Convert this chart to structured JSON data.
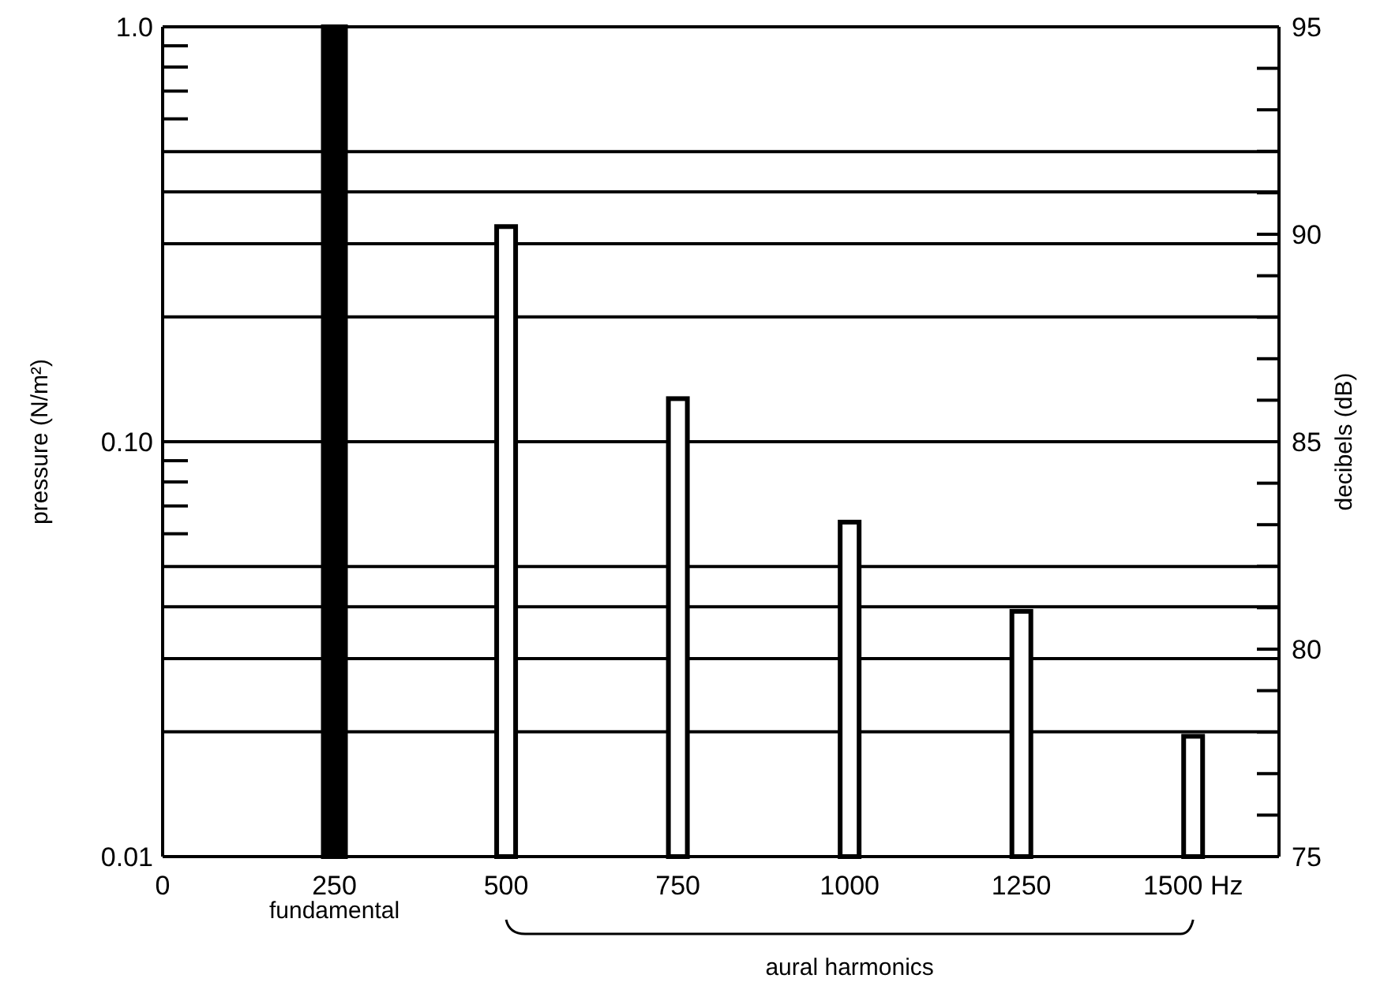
{
  "chart_data": {
    "type": "bar",
    "x": [
      250,
      500,
      750,
      1000,
      1250,
      1500
    ],
    "values": [
      1.0,
      0.33,
      0.127,
      0.064,
      0.039,
      0.0195
    ],
    "colors": [
      "#000000",
      "#ffffff",
      "#ffffff",
      "#ffffff",
      "#ffffff",
      "#ffffff"
    ],
    "log": "y",
    "xlim": [
      0,
      1625
    ],
    "xticks": [
      0,
      250,
      500,
      750,
      1000,
      1250,
      {
        "value": 1500,
        "label": "1500 Hz"
      }
    ],
    "ylim": [
      0.01,
      1.0
    ],
    "yticks": [
      {
        "value": 0.01,
        "label": "0.01"
      },
      {
        "value": 0.06,
        "label": null
      },
      {
        "value": 0.07,
        "label": null
      },
      {
        "value": 0.08,
        "label": null
      },
      {
        "value": 0.09,
        "label": null
      },
      {
        "value": 0.1,
        "label": "0.10"
      },
      {
        "value": 0.6,
        "label": null
      },
      {
        "value": 0.7,
        "label": null
      },
      {
        "value": 0.8,
        "label": null
      },
      {
        "value": 0.9,
        "label": null
      },
      {
        "value": 1.0,
        "label": "1.0"
      }
    ],
    "y2lim": [
      75,
      95
    ],
    "y2ticks": [
      75,
      {
        "value": 76,
        "label": null
      },
      {
        "value": 77,
        "label": null
      },
      {
        "value": 78,
        "label": null
      },
      {
        "value": 79,
        "label": null
      },
      80,
      {
        "value": 81,
        "label": null
      },
      {
        "value": 82,
        "label": null
      },
      {
        "value": 83,
        "label": null
      },
      {
        "value": 84,
        "label": null
      },
      85,
      {
        "value": 86,
        "label": null
      },
      {
        "value": 87,
        "label": null
      },
      {
        "value": 88,
        "label": null
      },
      {
        "value": 89,
        "label": null
      },
      90,
      {
        "value": 91,
        "label": null
      },
      {
        "value": 92,
        "label": null
      },
      {
        "value": 93,
        "label": null
      },
      {
        "value": 94,
        "label": null
      },
      95
    ],
    "ylabel": "pressure (N/m²)",
    "y2label": "decibels (dB)",
    "ref_lines": [
      {
        "axis": "y",
        "value": 0.02
      },
      {
        "axis": "y",
        "value": 0.03
      },
      {
        "axis": "y",
        "value": 0.04
      },
      {
        "axis": "y",
        "value": 0.05
      },
      {
        "axis": "y",
        "value": 0.1
      },
      {
        "axis": "y",
        "value": 0.2
      },
      {
        "axis": "y",
        "value": 0.3
      },
      {
        "axis": "y",
        "value": 0.4
      },
      {
        "axis": "y",
        "value": 0.5
      }
    ],
    "annotations": [
      "fundamental",
      "aural harmonics"
    ]
  }
}
